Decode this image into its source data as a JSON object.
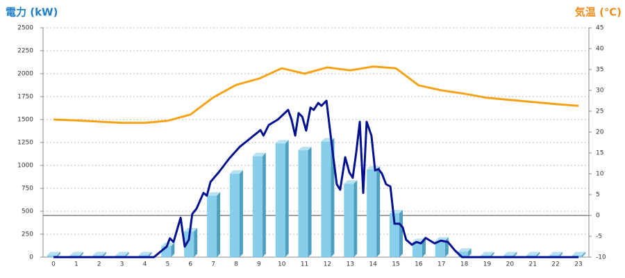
{
  "chart_data": {
    "type": "bar",
    "y_title": "電力 (kW)",
    "y2_title": "気温 (℃)",
    "categories": [
      "0",
      "1",
      "2",
      "3",
      "4",
      "5",
      "6",
      "7",
      "8",
      "9",
      "10",
      "11",
      "12",
      "13",
      "14",
      "15",
      "16",
      "17",
      "18",
      "19",
      "20",
      "21",
      "22",
      "23"
    ],
    "ylim": [
      0,
      2500
    ],
    "yticks": [
      0,
      250,
      500,
      750,
      1000,
      1250,
      1500,
      1750,
      2000,
      2250,
      2500
    ],
    "y2lim": [
      -10,
      45
    ],
    "y2ticks": [
      -10,
      -5,
      0,
      5,
      10,
      15,
      20,
      25,
      30,
      35,
      40,
      45
    ],
    "grid": true,
    "series": [
      {
        "type": "bar",
        "color": "#87ceeb",
        "side_color": "#4f9fbf",
        "values": [
          20,
          20,
          20,
          20,
          20,
          120,
          280,
          670,
          910,
          1100,
          1240,
          1165,
          1260,
          800,
          955,
          477,
          165,
          180,
          60,
          20,
          20,
          20,
          20,
          20
        ]
      },
      {
        "type": "line",
        "color": "#000f8f",
        "x": [
          0,
          4.4,
          4.96,
          5.1,
          5.26,
          5.57,
          5.75,
          5.93,
          6.08,
          6.27,
          6.57,
          6.72,
          6.88,
          7.24,
          7.7,
          8.15,
          8.6,
          9.07,
          9.2,
          9.43,
          9.83,
          10.28,
          10.43,
          10.59,
          10.74,
          10.9,
          11.07,
          11.26,
          11.4,
          11.6,
          11.74,
          11.96,
          12.2,
          12.41,
          12.56,
          12.78,
          12.96,
          13.11,
          13.26,
          13.42,
          13.57,
          13.72,
          13.93,
          14.09,
          14.24,
          14.39,
          14.57,
          14.76,
          14.94,
          15.15,
          15.3,
          15.45,
          15.7,
          15.9,
          16.1,
          16.3,
          16.5,
          16.7,
          16.97,
          17.28,
          17.58,
          17.9,
          23
        ],
        "values": [
          0,
          0,
          115,
          205,
          165,
          430,
          115,
          190,
          470,
          530,
          700,
          670,
          820,
          925,
          1075,
          1200,
          1290,
          1385,
          1325,
          1440,
          1500,
          1605,
          1500,
          1325,
          1570,
          1530,
          1380,
          1630,
          1605,
          1680,
          1650,
          1705,
          1210,
          795,
          735,
          1090,
          925,
          865,
          1135,
          1475,
          700,
          1475,
          1325,
          945,
          960,
          910,
          795,
          770,
          365,
          365,
          325,
          190,
          135,
          165,
          150,
          210,
          180,
          150,
          180,
          165,
          75,
          0,
          0
        ]
      },
      {
        "type": "line",
        "axis": "y2",
        "color": "#f5a316",
        "values": [
          23,
          22.8,
          22.5,
          22.2,
          22.2,
          22.7,
          24.2,
          28.3,
          31.3,
          32.8,
          35.3,
          34,
          35.5,
          34.8,
          35.7,
          35.3,
          31.2,
          30,
          29.2,
          28.2,
          27.7,
          27.2,
          26.7,
          26.3
        ]
      }
    ]
  }
}
